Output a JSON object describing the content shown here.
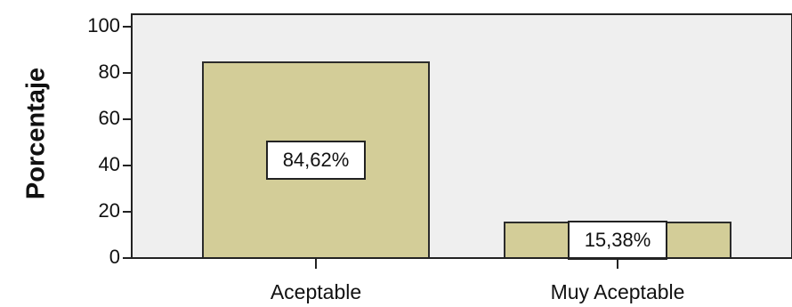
{
  "chart_data": {
    "type": "bar",
    "categories": [
      "Aceptable",
      "Muy Aceptable"
    ],
    "values": [
      84.62,
      15.38
    ],
    "data_labels": [
      "84,62%",
      "15,38%"
    ],
    "ylabel": "Porcentaje",
    "xlabel": "",
    "title": "",
    "ylim": [
      0,
      100
    ],
    "yticks": [
      0,
      20,
      40,
      60,
      80,
      100
    ],
    "grid": false,
    "colors": {
      "bar_fill": "#d3cd98",
      "bar_stroke": "#2b2b2b",
      "plot_background": "#efefef",
      "label_box": "#ffffff"
    }
  }
}
